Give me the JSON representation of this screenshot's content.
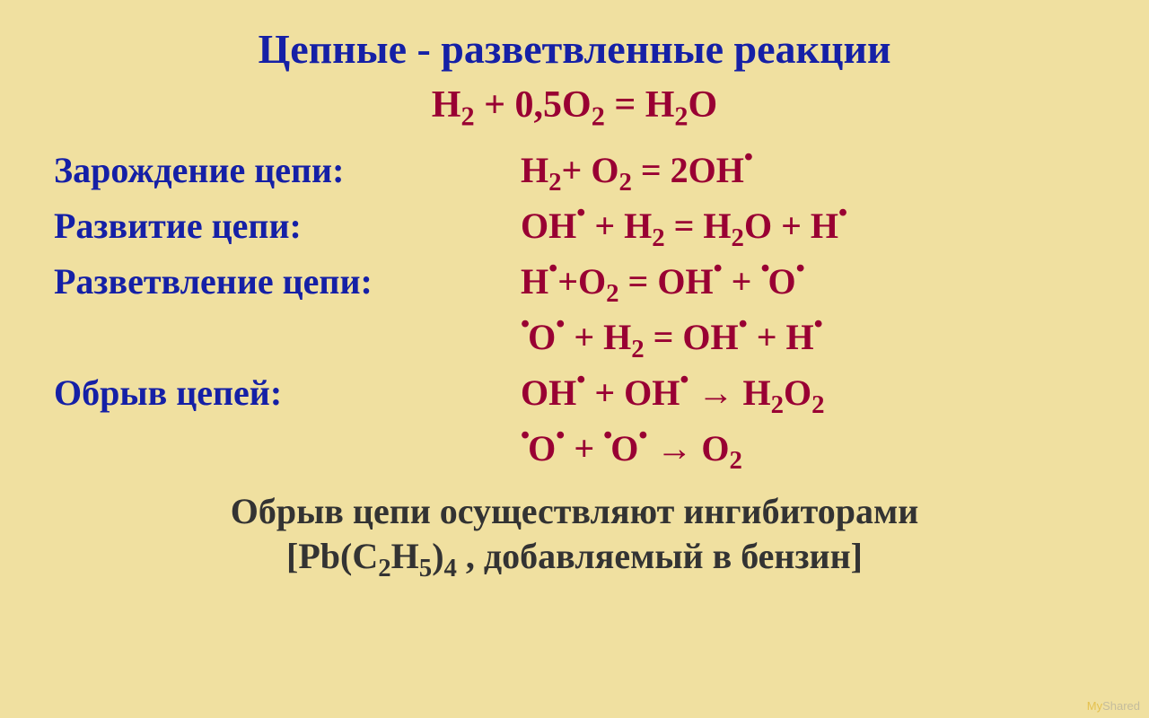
{
  "colors": {
    "background": "#f0e0a0",
    "title": "#1520a6",
    "subtitle": "#990033",
    "label": "#1520a6",
    "equation": "#990033",
    "footer": "#333333"
  },
  "title": {
    "text": "Цепные - разветвленные реакции",
    "fontsize": 46
  },
  "subtitle": {
    "pre": "H",
    "sub1": "2",
    "mid1": " + 0,5O",
    "sub2": "2",
    "mid2": " = H",
    "sub3": "2",
    "tail": "O",
    "fontsize": 42
  },
  "rows_fontsize": 40,
  "row1": {
    "label": "Зарождение цепи:",
    "eq": {
      "a": "H",
      "s1": "2",
      "b": "+ O",
      "s2": "2",
      "c": " = 2OH",
      "dot": "•"
    }
  },
  "row2": {
    "label": "Развитие цепи:",
    "eq": {
      "a": "OH",
      "d1": "•",
      "b": " + H",
      "s1": "2",
      "c": " = H",
      "s2": "2",
      "d": "O + H",
      "d2": "•"
    }
  },
  "row3": {
    "label": "Разветвление цепи:",
    "eq": {
      "a": "H",
      "d1": "•",
      "b": "+O",
      "s1": "2",
      "c": " = OH",
      "d2": "•",
      "d": " + ",
      "d3": "•",
      "e": "O",
      "d4": "•"
    }
  },
  "row4": {
    "label": "",
    "eq": {
      "d0": "•",
      "a": "O",
      "d1": "•",
      "b": " + H",
      "s1": "2",
      "c": " = OH",
      "d2": "•",
      "d": " + H",
      "d3": "•"
    }
  },
  "row5": {
    "label": "Обрыв цепей:",
    "eq": {
      "a": "OH",
      "d1": "•",
      "b": " + OH",
      "d2": "•",
      "arr": " → ",
      "c": "H",
      "s1": "2",
      "d": "O",
      "s2": "2"
    }
  },
  "row6": {
    "label": "",
    "eq": {
      "d0": "•",
      "a": "O",
      "d1": "•",
      "b": " +  ",
      "d2": "•",
      "c": "O",
      "d3": "•",
      "arr": " → ",
      "d": "O",
      "s1": "2"
    }
  },
  "footer": {
    "line1": "Обрыв цепи осуществляют ингибиторами",
    "line2_pre": "[Pb(C",
    "line2_s1": "2",
    "line2_mid": "H",
    "line2_s2": "5",
    "line2_tail1": ")",
    "line2_s3": "4",
    "line2_tail2": " , добавляемый в бензин]",
    "fontsize": 40
  },
  "watermark": {
    "prefix": "My",
    "suffix": "Shared"
  }
}
